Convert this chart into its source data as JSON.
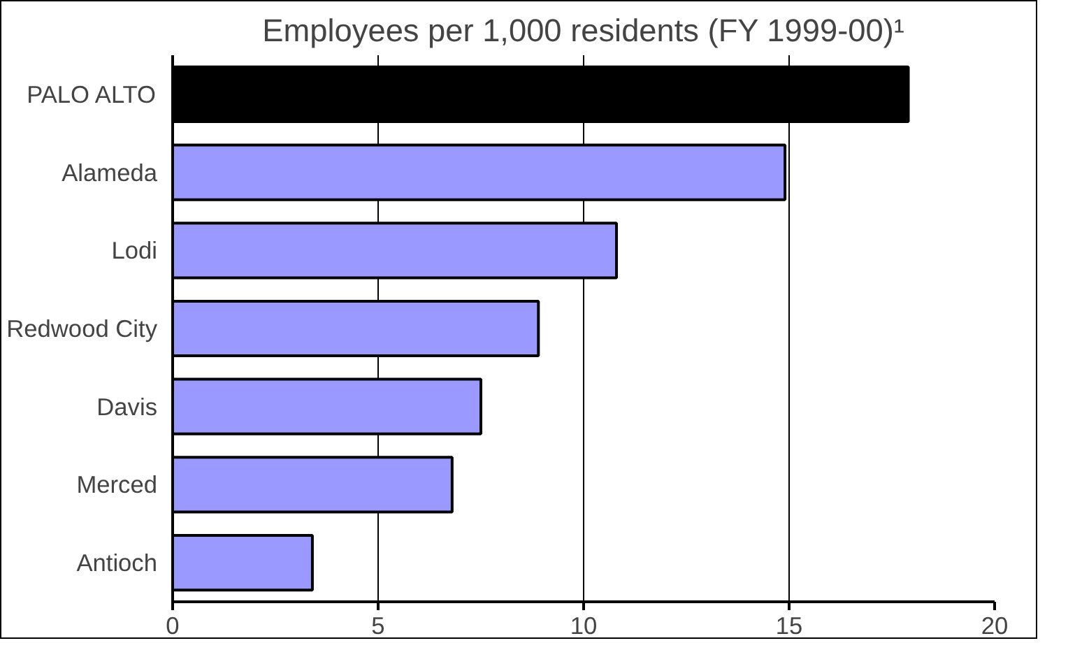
{
  "chart_data": {
    "type": "bar",
    "orientation": "horizontal",
    "title": "Employees per 1,000 residents (FY 1999-00)¹",
    "categories": [
      "PALO ALTO",
      "Alameda",
      "Lodi",
      "Redwood City",
      "Davis",
      "Merced",
      "Antioch"
    ],
    "values": [
      17.9,
      14.9,
      10.8,
      8.9,
      7.5,
      6.8,
      3.4
    ],
    "colors": [
      "#000000",
      "#9999ff",
      "#9999ff",
      "#9999ff",
      "#9999ff",
      "#9999ff",
      "#9999ff"
    ],
    "xlim": [
      0,
      20
    ],
    "xticks": [
      0,
      5,
      10,
      15,
      20
    ],
    "grid": "x"
  }
}
